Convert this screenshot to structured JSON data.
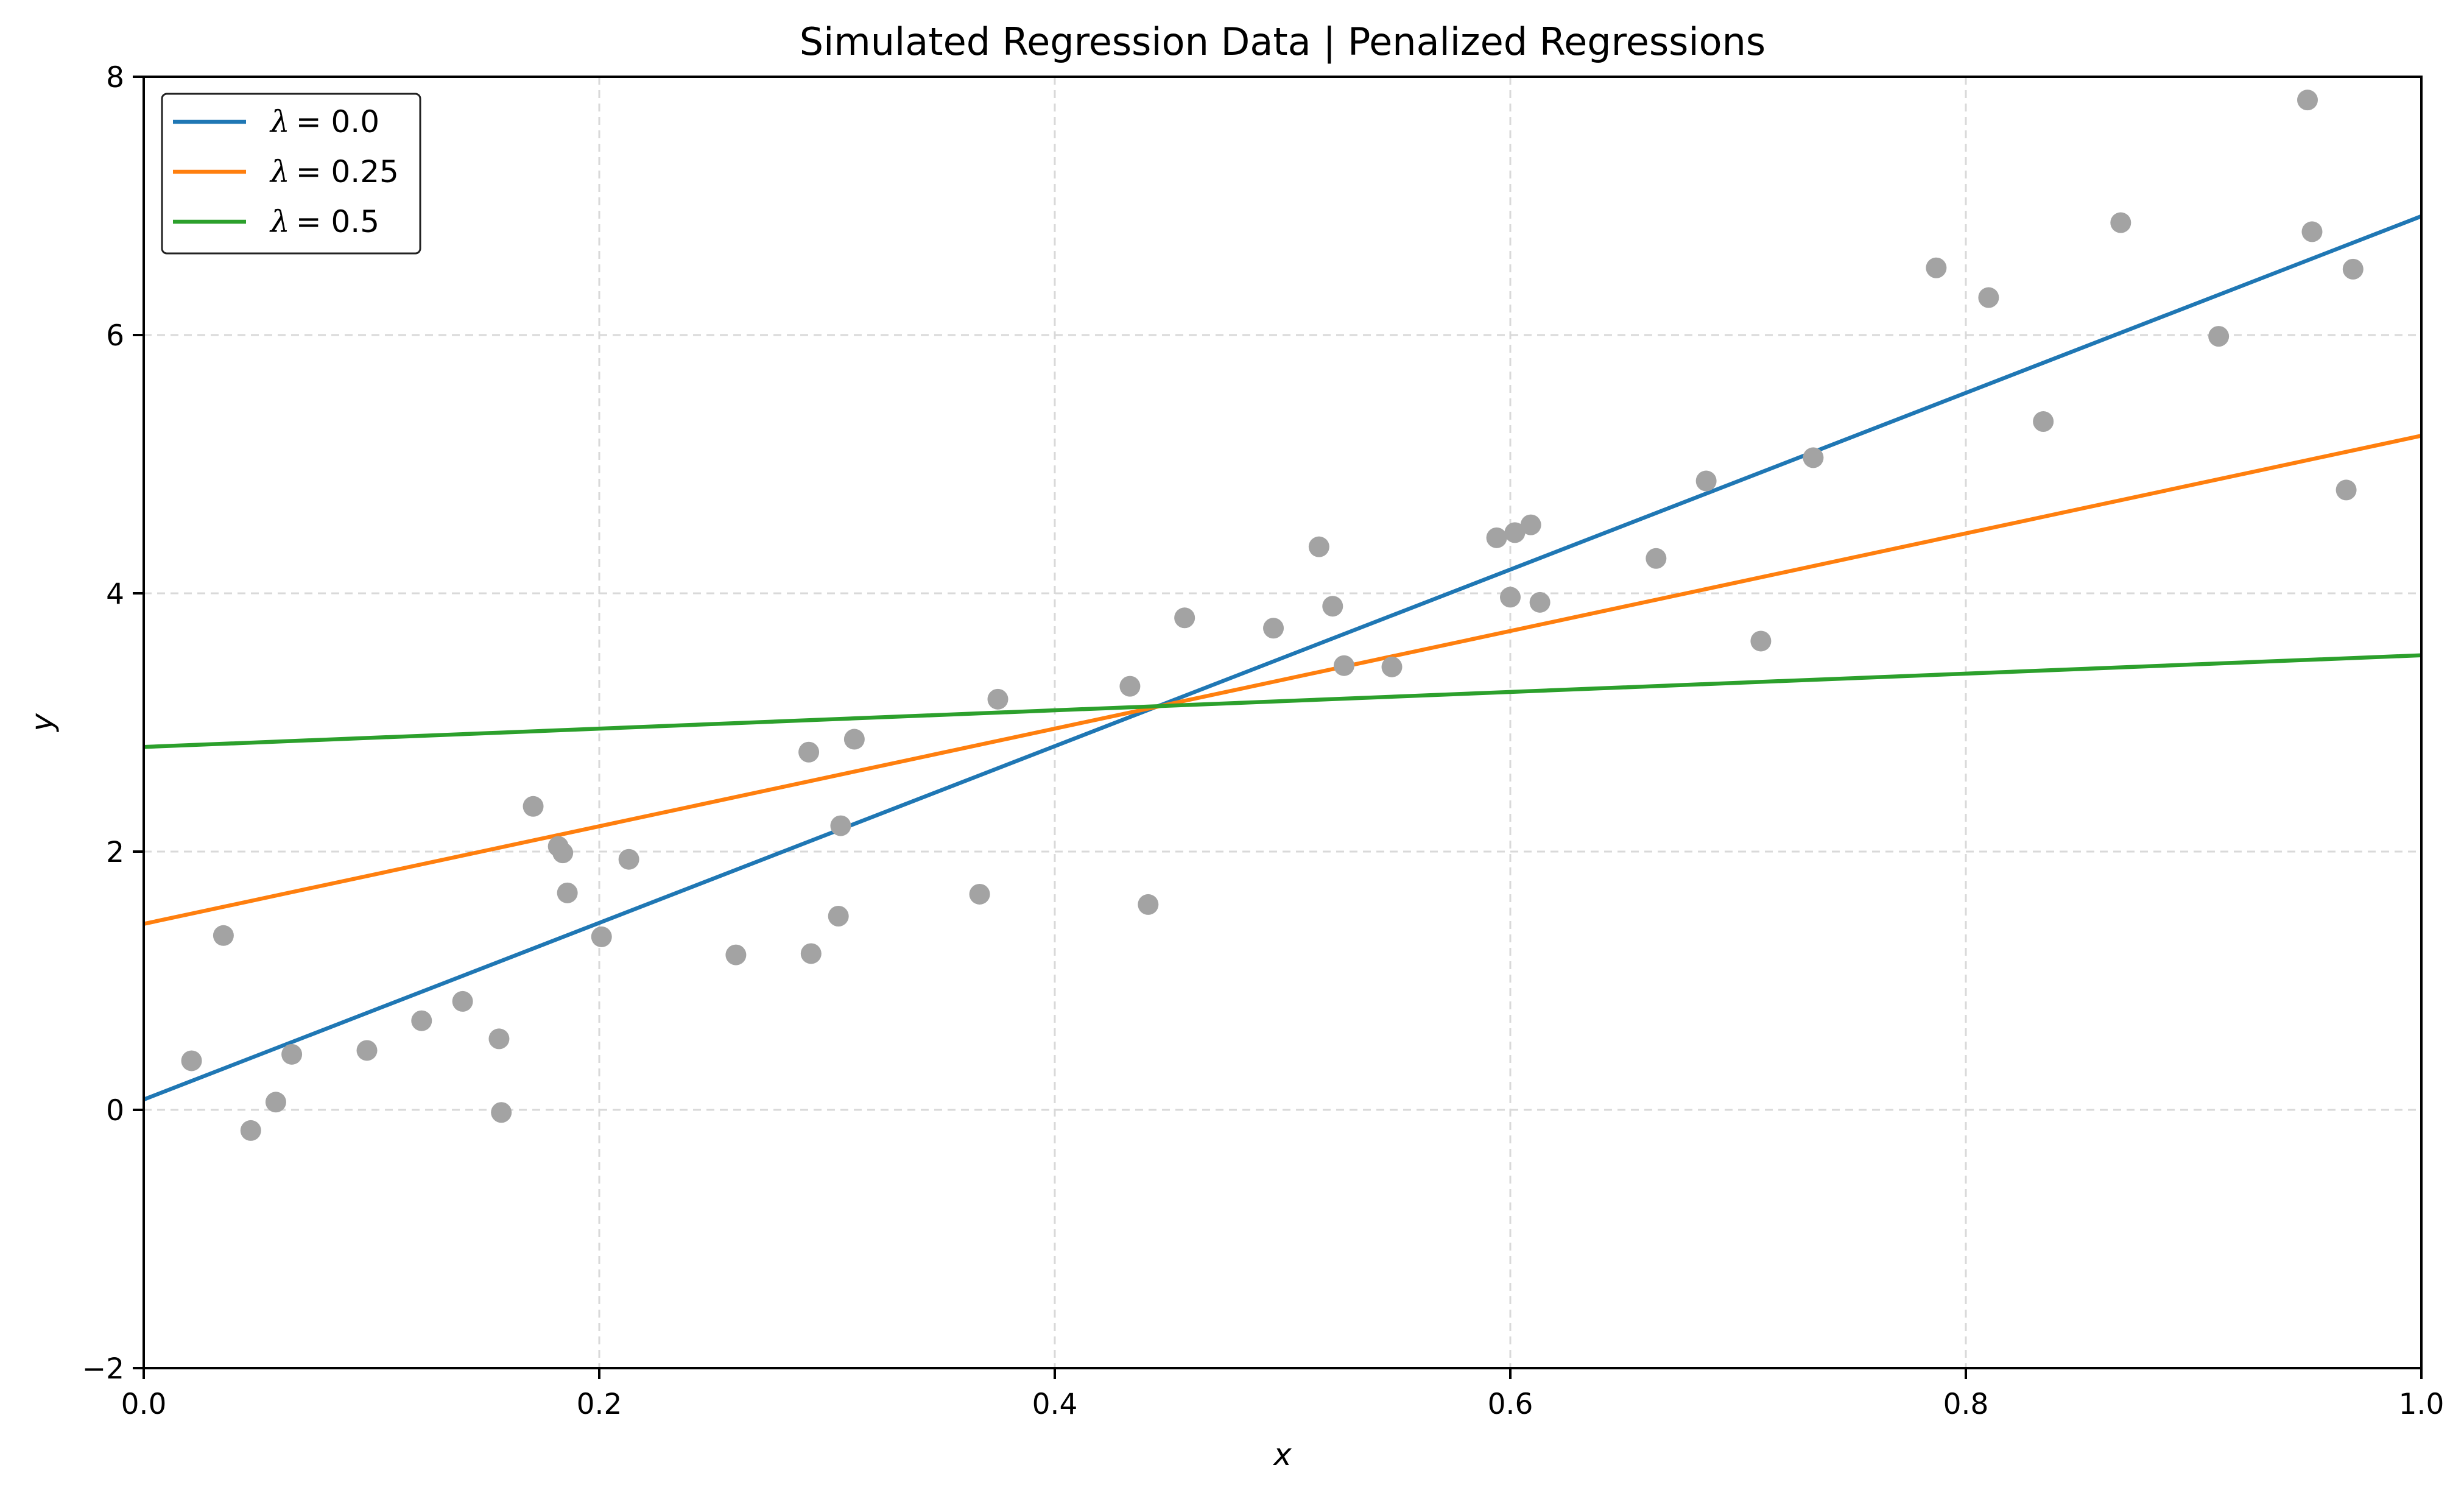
{
  "chart_data": {
    "type": "scatter",
    "title": "Simulated Regression Data | Penalized Regressions",
    "xlabel": "x",
    "ylabel": "y",
    "xlim": [
      0.0,
      1.0
    ],
    "ylim": [
      -2,
      8
    ],
    "xticks": [
      0.0,
      0.2,
      0.4,
      0.6,
      0.8,
      1.0
    ],
    "xtick_labels": [
      "0.0",
      "0.2",
      "0.4",
      "0.6",
      "0.8",
      "1.0"
    ],
    "yticks": [
      -2,
      0,
      2,
      4,
      6,
      8
    ],
    "ytick_labels": [
      "−2",
      "0",
      "2",
      "4",
      "6",
      "8"
    ],
    "grid": true,
    "legend_position": "top-left",
    "point_color": "#a3a3a3",
    "points": [
      {
        "x": 0.021,
        "y": 0.38
      },
      {
        "x": 0.035,
        "y": 1.35
      },
      {
        "x": 0.047,
        "y": -0.16
      },
      {
        "x": 0.058,
        "y": 0.06
      },
      {
        "x": 0.065,
        "y": 0.43
      },
      {
        "x": 0.098,
        "y": 0.46
      },
      {
        "x": 0.122,
        "y": 0.69
      },
      {
        "x": 0.14,
        "y": 0.84
      },
      {
        "x": 0.156,
        "y": 0.55
      },
      {
        "x": 0.157,
        "y": -0.02
      },
      {
        "x": 0.171,
        "y": 2.35
      },
      {
        "x": 0.182,
        "y": 2.04
      },
      {
        "x": 0.184,
        "y": 1.99
      },
      {
        "x": 0.186,
        "y": 1.68
      },
      {
        "x": 0.201,
        "y": 1.34
      },
      {
        "x": 0.213,
        "y": 1.94
      },
      {
        "x": 0.26,
        "y": 1.2
      },
      {
        "x": 0.292,
        "y": 2.77
      },
      {
        "x": 0.293,
        "y": 1.21
      },
      {
        "x": 0.305,
        "y": 1.5
      },
      {
        "x": 0.306,
        "y": 2.2
      },
      {
        "x": 0.312,
        "y": 2.87
      },
      {
        "x": 0.367,
        "y": 1.67
      },
      {
        "x": 0.375,
        "y": 3.18
      },
      {
        "x": 0.433,
        "y": 3.28
      },
      {
        "x": 0.441,
        "y": 1.59
      },
      {
        "x": 0.457,
        "y": 3.81
      },
      {
        "x": 0.496,
        "y": 3.73
      },
      {
        "x": 0.516,
        "y": 4.36
      },
      {
        "x": 0.522,
        "y": 3.9
      },
      {
        "x": 0.527,
        "y": 3.44
      },
      {
        "x": 0.548,
        "y": 3.43
      },
      {
        "x": 0.594,
        "y": 4.43
      },
      {
        "x": 0.6,
        "y": 3.97
      },
      {
        "x": 0.602,
        "y": 4.47
      },
      {
        "x": 0.609,
        "y": 4.53
      },
      {
        "x": 0.613,
        "y": 3.93
      },
      {
        "x": 0.664,
        "y": 4.27
      },
      {
        "x": 0.686,
        "y": 4.87
      },
      {
        "x": 0.71,
        "y": 3.63
      },
      {
        "x": 0.733,
        "y": 5.05
      },
      {
        "x": 0.787,
        "y": 6.52
      },
      {
        "x": 0.81,
        "y": 6.29
      },
      {
        "x": 0.834,
        "y": 5.33
      },
      {
        "x": 0.868,
        "y": 6.87
      },
      {
        "x": 0.911,
        "y": 5.99
      },
      {
        "x": 0.95,
        "y": 7.82
      },
      {
        "x": 0.952,
        "y": 6.8
      },
      {
        "x": 0.967,
        "y": 4.8
      },
      {
        "x": 0.97,
        "y": 6.51
      }
    ],
    "series": [
      {
        "name": "λ = 0.0",
        "lambda_symbol": "λ",
        "lambda_value": "= 0.0",
        "color": "#1f77b4",
        "x": [
          0.0,
          1.0
        ],
        "y": [
          0.08,
          6.92
        ]
      },
      {
        "name": "λ = 0.25",
        "lambda_symbol": "λ",
        "lambda_value": "= 0.25",
        "color": "#ff7f0e",
        "x": [
          0.0,
          1.0
        ],
        "y": [
          1.44,
          5.22
        ]
      },
      {
        "name": "λ = 0.5",
        "lambda_symbol": "λ",
        "lambda_value": "= 0.5",
        "color": "#2ca02c",
        "x": [
          0.0,
          1.0
        ],
        "y": [
          2.81,
          3.52
        ]
      }
    ]
  }
}
